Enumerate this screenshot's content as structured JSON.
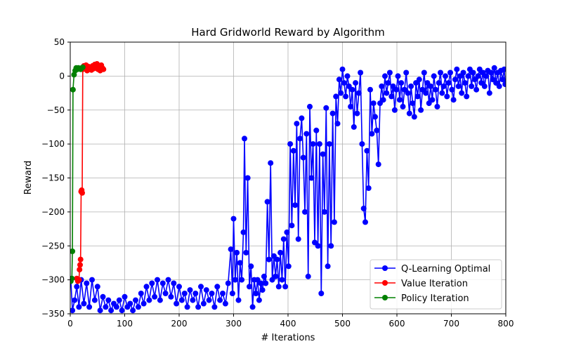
{
  "chart_data": {
    "type": "line",
    "title": "Hard Gridworld Reward by Algorithm",
    "xlabel": "# Iterations",
    "ylabel": "Reward",
    "xlim": [
      0,
      800
    ],
    "ylim": [
      -350,
      50
    ],
    "xticks": [
      0,
      100,
      200,
      300,
      400,
      500,
      600,
      700,
      800
    ],
    "yticks": [
      50,
      0,
      -50,
      -100,
      -150,
      -200,
      -250,
      -300,
      -350
    ],
    "grid": true,
    "legend_position": "lower-right",
    "series": [
      {
        "name": "Q-Learning Optimal",
        "color": "#0000ff",
        "points": [
          [
            1,
            -300
          ],
          [
            4,
            -345
          ],
          [
            8,
            -330
          ],
          [
            12,
            -310
          ],
          [
            16,
            -340
          ],
          [
            20,
            -300
          ],
          [
            25,
            -335
          ],
          [
            30,
            -305
          ],
          [
            35,
            -340
          ],
          [
            40,
            -300
          ],
          [
            45,
            -330
          ],
          [
            50,
            -310
          ],
          [
            55,
            -345
          ],
          [
            60,
            -325
          ],
          [
            65,
            -340
          ],
          [
            70,
            -330
          ],
          [
            75,
            -345
          ],
          [
            80,
            -335
          ],
          [
            85,
            -340
          ],
          [
            90,
            -330
          ],
          [
            95,
            -345
          ],
          [
            100,
            -325
          ],
          [
            105,
            -340
          ],
          [
            110,
            -335
          ],
          [
            115,
            -345
          ],
          [
            120,
            -330
          ],
          [
            125,
            -340
          ],
          [
            130,
            -320
          ],
          [
            135,
            -335
          ],
          [
            140,
            -310
          ],
          [
            145,
            -330
          ],
          [
            150,
            -305
          ],
          [
            155,
            -325
          ],
          [
            160,
            -300
          ],
          [
            165,
            -330
          ],
          [
            170,
            -305
          ],
          [
            175,
            -320
          ],
          [
            180,
            -300
          ],
          [
            185,
            -325
          ],
          [
            190,
            -305
          ],
          [
            195,
            -335
          ],
          [
            200,
            -310
          ],
          [
            205,
            -330
          ],
          [
            210,
            -320
          ],
          [
            215,
            -340
          ],
          [
            220,
            -315
          ],
          [
            225,
            -330
          ],
          [
            230,
            -320
          ],
          [
            235,
            -340
          ],
          [
            240,
            -310
          ],
          [
            245,
            -335
          ],
          [
            250,
            -315
          ],
          [
            255,
            -330
          ],
          [
            260,
            -320
          ],
          [
            265,
            -340
          ],
          [
            270,
            -310
          ],
          [
            275,
            -330
          ],
          [
            280,
            -320
          ],
          [
            285,
            -335
          ],
          [
            290,
            -305
          ],
          [
            295,
            -255
          ],
          [
            298,
            -320
          ],
          [
            300,
            -210
          ],
          [
            303,
            -300
          ],
          [
            306,
            -260
          ],
          [
            309,
            -330
          ],
          [
            312,
            -275
          ],
          [
            315,
            -300
          ],
          [
            318,
            -230
          ],
          [
            320,
            -92
          ],
          [
            323,
            -260
          ],
          [
            326,
            -150
          ],
          [
            329,
            -310
          ],
          [
            332,
            -280
          ],
          [
            335,
            -340
          ],
          [
            338,
            -300
          ],
          [
            341,
            -320
          ],
          [
            344,
            -300
          ],
          [
            347,
            -330
          ],
          [
            350,
            -305
          ],
          [
            353,
            -315
          ],
          [
            356,
            -295
          ],
          [
            359,
            -305
          ],
          [
            362,
            -185
          ],
          [
            365,
            -270
          ],
          [
            368,
            -128
          ],
          [
            371,
            -300
          ],
          [
            374,
            -265
          ],
          [
            377,
            -295
          ],
          [
            380,
            -270
          ],
          [
            383,
            -310
          ],
          [
            386,
            -260
          ],
          [
            389,
            -300
          ],
          [
            392,
            -240
          ],
          [
            395,
            -310
          ],
          [
            398,
            -230
          ],
          [
            401,
            -280
          ],
          [
            404,
            -100
          ],
          [
            407,
            -220
          ],
          [
            410,
            -110
          ],
          [
            413,
            -190
          ],
          [
            416,
            -70
          ],
          [
            419,
            -240
          ],
          [
            422,
            -92
          ],
          [
            425,
            -62
          ],
          [
            428,
            -120
          ],
          [
            431,
            -200
          ],
          [
            434,
            -85
          ],
          [
            437,
            -295
          ],
          [
            440,
            -45
          ],
          [
            443,
            -150
          ],
          [
            446,
            -100
          ],
          [
            449,
            -245
          ],
          [
            452,
            -80
          ],
          [
            455,
            -250
          ],
          [
            458,
            -100
          ],
          [
            461,
            -320
          ],
          [
            464,
            -115
          ],
          [
            467,
            -200
          ],
          [
            470,
            -47
          ],
          [
            473,
            -280
          ],
          [
            476,
            -100
          ],
          [
            479,
            -250
          ],
          [
            482,
            -55
          ],
          [
            485,
            -215
          ],
          [
            488,
            -30
          ],
          [
            491,
            -70
          ],
          [
            494,
            -5
          ],
          [
            497,
            -25
          ],
          [
            500,
            10
          ],
          [
            503,
            -10
          ],
          [
            506,
            -30
          ],
          [
            509,
            0
          ],
          [
            512,
            -15
          ],
          [
            515,
            -45
          ],
          [
            518,
            -20
          ],
          [
            521,
            -75
          ],
          [
            524,
            -10
          ],
          [
            527,
            -55
          ],
          [
            530,
            -25
          ],
          [
            533,
            5
          ],
          [
            536,
            -100
          ],
          [
            539,
            -195
          ],
          [
            542,
            -215
          ],
          [
            545,
            -110
          ],
          [
            548,
            -165
          ],
          [
            551,
            -20
          ],
          [
            554,
            -85
          ],
          [
            557,
            -40
          ],
          [
            560,
            -60
          ],
          [
            563,
            -80
          ],
          [
            566,
            -130
          ],
          [
            569,
            -40
          ],
          [
            572,
            -15
          ],
          [
            575,
            -35
          ],
          [
            578,
            0
          ],
          [
            581,
            -25
          ],
          [
            584,
            -10
          ],
          [
            587,
            5
          ],
          [
            590,
            -30
          ],
          [
            593,
            -15
          ],
          [
            596,
            -50
          ],
          [
            599,
            -20
          ],
          [
            602,
            0
          ],
          [
            605,
            -35
          ],
          [
            608,
            -10
          ],
          [
            611,
            -45
          ],
          [
            614,
            -20
          ],
          [
            617,
            5
          ],
          [
            620,
            -25
          ],
          [
            623,
            -55
          ],
          [
            626,
            -15
          ],
          [
            629,
            -40
          ],
          [
            632,
            -60
          ],
          [
            635,
            -10
          ],
          [
            638,
            -30
          ],
          [
            641,
            -5
          ],
          [
            644,
            -50
          ],
          [
            647,
            -20
          ],
          [
            650,
            5
          ],
          [
            653,
            -25
          ],
          [
            656,
            -10
          ],
          [
            659,
            -40
          ],
          [
            662,
            -15
          ],
          [
            665,
            -35
          ],
          [
            668,
            0
          ],
          [
            671,
            -20
          ],
          [
            674,
            -45
          ],
          [
            677,
            -10
          ],
          [
            680,
            5
          ],
          [
            683,
            -25
          ],
          [
            686,
            -15
          ],
          [
            689,
            0
          ],
          [
            692,
            -30
          ],
          [
            695,
            -10
          ],
          [
            698,
            5
          ],
          [
            701,
            -20
          ],
          [
            704,
            -35
          ],
          [
            707,
            -5
          ],
          [
            710,
            10
          ],
          [
            713,
            -15
          ],
          [
            716,
            0
          ],
          [
            719,
            -25
          ],
          [
            722,
            5
          ],
          [
            725,
            -10
          ],
          [
            728,
            -30
          ],
          [
            731,
            0
          ],
          [
            734,
            10
          ],
          [
            737,
            -15
          ],
          [
            740,
            5
          ],
          [
            743,
            -5
          ],
          [
            746,
            -20
          ],
          [
            749,
            0
          ],
          [
            752,
            10
          ],
          [
            755,
            -10
          ],
          [
            758,
            5
          ],
          [
            761,
            -15
          ],
          [
            764,
            0
          ],
          [
            767,
            8
          ],
          [
            770,
            -25
          ],
          [
            773,
            5
          ],
          [
            776,
            -5
          ],
          [
            779,
            12
          ],
          [
            782,
            -10
          ],
          [
            785,
            5
          ],
          [
            788,
            -15
          ],
          [
            791,
            8
          ],
          [
            794,
            -5
          ],
          [
            797,
            10
          ],
          [
            799,
            -12
          ]
        ]
      },
      {
        "name": "Value Iteration",
        "color": "#ff0000",
        "points": [
          [
            12,
            -298
          ],
          [
            14,
            -302
          ],
          [
            16,
            -300
          ],
          [
            17,
            -285
          ],
          [
            18,
            -278
          ],
          [
            19,
            -270
          ],
          [
            20,
            -170
          ],
          [
            21,
            -168
          ],
          [
            22,
            -172
          ],
          [
            23,
            10
          ],
          [
            25,
            15
          ],
          [
            27,
            12
          ],
          [
            29,
            16
          ],
          [
            31,
            8
          ],
          [
            33,
            14
          ],
          [
            35,
            10
          ],
          [
            37,
            13
          ],
          [
            39,
            9
          ],
          [
            41,
            15
          ],
          [
            43,
            11
          ],
          [
            45,
            17
          ],
          [
            47,
            12
          ],
          [
            49,
            18
          ],
          [
            51,
            10
          ],
          [
            53,
            14
          ],
          [
            55,
            8
          ],
          [
            57,
            16
          ],
          [
            59,
            12
          ],
          [
            61,
            10
          ]
        ]
      },
      {
        "name": "Policy Iteration",
        "color": "#008000",
        "points": [
          [
            1,
            -302
          ],
          [
            3,
            -298
          ],
          [
            4,
            -258
          ],
          [
            5,
            -20
          ],
          [
            7,
            2
          ],
          [
            9,
            8
          ],
          [
            11,
            12
          ],
          [
            13,
            10
          ],
          [
            15,
            12
          ],
          [
            17,
            11
          ],
          [
            19,
            10
          ],
          [
            21,
            12
          ],
          [
            23,
            13
          ]
        ]
      }
    ]
  }
}
